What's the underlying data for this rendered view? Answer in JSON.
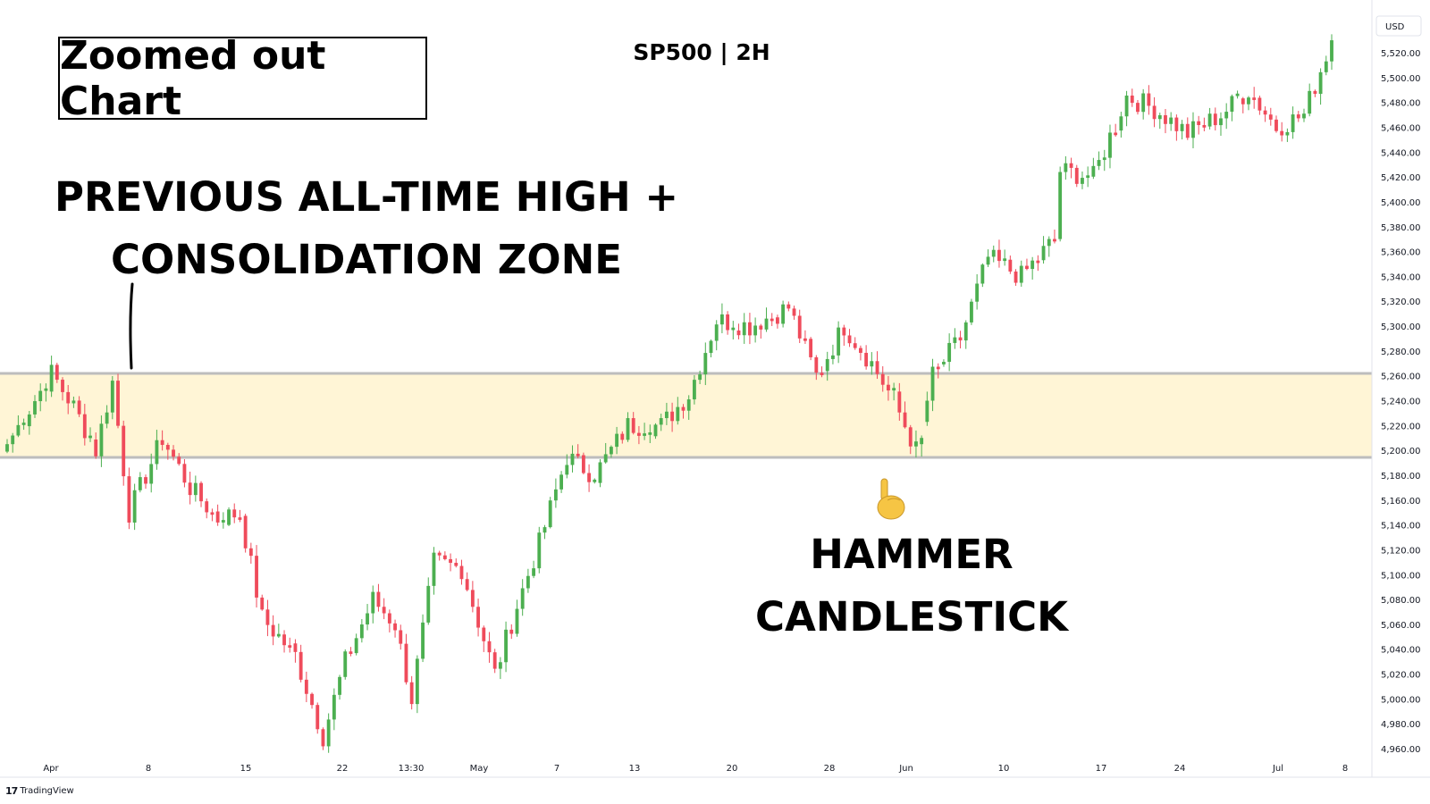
{
  "title_box": "Zoomed out Chart",
  "symbol": "SP500 | 2H",
  "annotation_top": {
    "line1": "PREVIOUS ALL-TIME HIGH +",
    "line2": "CONSOLIDATION ZONE"
  },
  "annotation_hammer": {
    "line1": "HAMMER",
    "line2": "CANDLESTICK"
  },
  "pointer_icon": "pointing-down-hand-icon",
  "watermark": "TradingView",
  "colors": {
    "up": "#4caf50",
    "down": "#ef4b5b",
    "zone_fill": "#fff5d6",
    "zone_border": "#bdbdbd"
  },
  "chart_data": {
    "type": "candlestick",
    "currency": "USD",
    "y_axis_position": "right",
    "ylim": [
      4945,
      5530
    ],
    "y_ticks": [
      "5,520.00",
      "5,500.00",
      "5,480.00",
      "5,460.00",
      "5,440.00",
      "5,420.00",
      "5,400.00",
      "5,380.00",
      "5,360.00",
      "5,340.00",
      "5,320.00",
      "5,300.00",
      "5,280.00",
      "5,260.00",
      "5,240.00",
      "5,220.00",
      "5,200.00",
      "5,180.00",
      "5,160.00",
      "5,140.00",
      "5,120.00",
      "5,100.00",
      "5,080.00",
      "5,060.00",
      "5,040.00",
      "5,020.00",
      "5,000.00",
      "4,980.00",
      "4,960.00"
    ],
    "x_ticks": [
      "Apr",
      "8",
      "15",
      "22",
      "13:30",
      "May",
      "7",
      "13",
      "20",
      "28",
      "Jun",
      "10",
      "17",
      "24",
      "Jul",
      "8"
    ],
    "zone": {
      "low": 5195,
      "high": 5262
    },
    "anchors": [
      {
        "i": 0,
        "c": 5205
      },
      {
        "i": 8,
        "c": 5262
      },
      {
        "i": 12,
        "c": 5235
      },
      {
        "i": 16,
        "c": 5200
      },
      {
        "i": 19,
        "c": 5255
      },
      {
        "i": 22,
        "c": 5150
      },
      {
        "i": 28,
        "c": 5210
      },
      {
        "i": 33,
        "c": 5170
      },
      {
        "i": 38,
        "c": 5145
      },
      {
        "i": 42,
        "c": 5150
      },
      {
        "i": 46,
        "c": 5065
      },
      {
        "i": 52,
        "c": 5035
      },
      {
        "i": 57,
        "c": 4970
      },
      {
        "i": 61,
        "c": 5030
      },
      {
        "i": 66,
        "c": 5080
      },
      {
        "i": 70,
        "c": 5060
      },
      {
        "i": 73,
        "c": 5000
      },
      {
        "i": 77,
        "c": 5110
      },
      {
        "i": 82,
        "c": 5105
      },
      {
        "i": 88,
        "c": 5020
      },
      {
        "i": 92,
        "c": 5075
      },
      {
        "i": 96,
        "c": 5125
      },
      {
        "i": 101,
        "c": 5195
      },
      {
        "i": 106,
        "c": 5180
      },
      {
        "i": 112,
        "c": 5220
      },
      {
        "i": 118,
        "c": 5220
      },
      {
        "i": 123,
        "c": 5245
      },
      {
        "i": 128,
        "c": 5305
      },
      {
        "i": 134,
        "c": 5300
      },
      {
        "i": 141,
        "c": 5315
      },
      {
        "i": 146,
        "c": 5260
      },
      {
        "i": 151,
        "c": 5300
      },
      {
        "i": 156,
        "c": 5270
      },
      {
        "i": 160,
        "c": 5240
      },
      {
        "i": 164,
        "c": 5200
      },
      {
        "i": 167,
        "c": 5260
      },
      {
        "i": 172,
        "c": 5290
      },
      {
        "i": 177,
        "c": 5355
      },
      {
        "i": 183,
        "c": 5340
      },
      {
        "i": 189,
        "c": 5370
      },
      {
        "i": 190,
        "c": 5425
      },
      {
        "i": 196,
        "c": 5420
      },
      {
        "i": 202,
        "c": 5485
      },
      {
        "i": 207,
        "c": 5475
      },
      {
        "i": 213,
        "c": 5455
      },
      {
        "i": 219,
        "c": 5470
      },
      {
        "i": 224,
        "c": 5490
      },
      {
        "i": 229,
        "c": 5460
      },
      {
        "i": 234,
        "c": 5470
      },
      {
        "i": 239,
        "c": 5530
      }
    ],
    "hammer": {
      "index": 165,
      "o": 5205,
      "h": 5212,
      "l": 5195,
      "c": 5210
    }
  }
}
